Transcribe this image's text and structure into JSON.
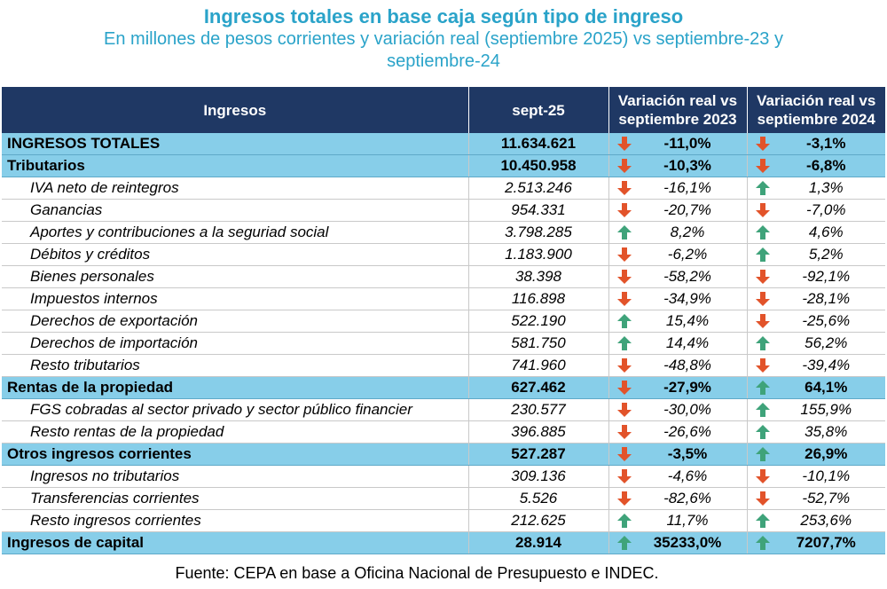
{
  "title": "Ingresos totales en base caja según tipo de ingreso",
  "subtitle": "En millones de pesos corrientes y variación real (septiembre 2025) vs septiembre-23 y septiembre-24",
  "headers": {
    "col1": "Ingresos",
    "col2": "sept-25",
    "col3_line1": "Variación real vs",
    "col3_line2": "septiembre 2023",
    "col4_line1": "Variación real vs",
    "col4_line2": "septiembre 2024"
  },
  "colors": {
    "down_arrow": "#e2532a",
    "up_arrow": "#3fa37a",
    "header_bg": "#1f3864",
    "category_bg": "#87cee9",
    "title": "#2aa3c9"
  },
  "rows": [
    {
      "label": "INGRESOS TOTALES",
      "value": "11.634.621",
      "v23": "-11,0%",
      "d23": "down",
      "v24": "-3,1%",
      "d24": "down",
      "type": "total"
    },
    {
      "label": "Tributarios",
      "value": "10.450.958",
      "v23": "-10,3%",
      "d23": "down",
      "v24": "-6,8%",
      "d24": "down",
      "type": "cat"
    },
    {
      "label": "IVA neto de reintegros",
      "value": "2.513.246",
      "v23": "-16,1%",
      "d23": "down",
      "v24": "1,3%",
      "d24": "up",
      "type": "sub"
    },
    {
      "label": "Ganancias",
      "value": "954.331",
      "v23": "-20,7%",
      "d23": "down",
      "v24": "-7,0%",
      "d24": "down",
      "type": "sub"
    },
    {
      "label": "Aportes y contribuciones a la seguriad social",
      "value": "3.798.285",
      "v23": "8,2%",
      "d23": "up",
      "v24": "4,6%",
      "d24": "up",
      "type": "sub"
    },
    {
      "label": "Débitos y créditos",
      "value": "1.183.900",
      "v23": "-6,2%",
      "d23": "down",
      "v24": "5,2%",
      "d24": "up",
      "type": "sub"
    },
    {
      "label": "Bienes personales",
      "value": "38.398",
      "v23": "-58,2%",
      "d23": "down",
      "v24": "-92,1%",
      "d24": "down",
      "type": "sub"
    },
    {
      "label": "Impuestos internos",
      "value": "116.898",
      "v23": "-34,9%",
      "d23": "down",
      "v24": "-28,1%",
      "d24": "down",
      "type": "sub"
    },
    {
      "label": "Derechos de exportación",
      "value": "522.190",
      "v23": "15,4%",
      "d23": "up",
      "v24": "-25,6%",
      "d24": "down",
      "type": "sub"
    },
    {
      "label": "Derechos de importación",
      "value": "581.750",
      "v23": "14,4%",
      "d23": "up",
      "v24": "56,2%",
      "d24": "up",
      "type": "sub"
    },
    {
      "label": "Resto tributarios",
      "value": "741.960",
      "v23": "-48,8%",
      "d23": "down",
      "v24": "-39,4%",
      "d24": "down",
      "type": "sub"
    },
    {
      "label": "Rentas de la propiedad",
      "value": "627.462",
      "v23": "-27,9%",
      "d23": "down",
      "v24": "64,1%",
      "d24": "up",
      "type": "cat"
    },
    {
      "label": "FGS cobradas al sector privado y sector público financier",
      "value": "230.577",
      "v23": "-30,0%",
      "d23": "down",
      "v24": "155,9%",
      "d24": "up",
      "type": "sub"
    },
    {
      "label": "Resto rentas de la propiedad",
      "value": "396.885",
      "v23": "-26,6%",
      "d23": "down",
      "v24": "35,8%",
      "d24": "up",
      "type": "sub"
    },
    {
      "label": "Otros ingresos corrientes",
      "value": "527.287",
      "v23": "-3,5%",
      "d23": "down",
      "v24": "26,9%",
      "d24": "up",
      "type": "cat"
    },
    {
      "label": "Ingresos no tributarios",
      "value": "309.136",
      "v23": "-4,6%",
      "d23": "down",
      "v24": "-10,1%",
      "d24": "down",
      "type": "sub"
    },
    {
      "label": "Transferencias corrientes",
      "value": "5.526",
      "v23": "-82,6%",
      "d23": "down",
      "v24": "-52,7%",
      "d24": "down",
      "type": "sub"
    },
    {
      "label": "Resto ingresos corrientes",
      "value": "212.625",
      "v23": "11,7%",
      "d23": "up",
      "v24": "253,6%",
      "d24": "up",
      "type": "sub"
    },
    {
      "label": "Ingresos de capital",
      "value": "28.914",
      "v23": "35233,0%",
      "d23": "up",
      "v24": "7207,7%",
      "d24": "up",
      "type": "cat"
    }
  ],
  "footer": "Fuente: CEPA en base a Oficina Nacional de Presupuesto e INDEC."
}
